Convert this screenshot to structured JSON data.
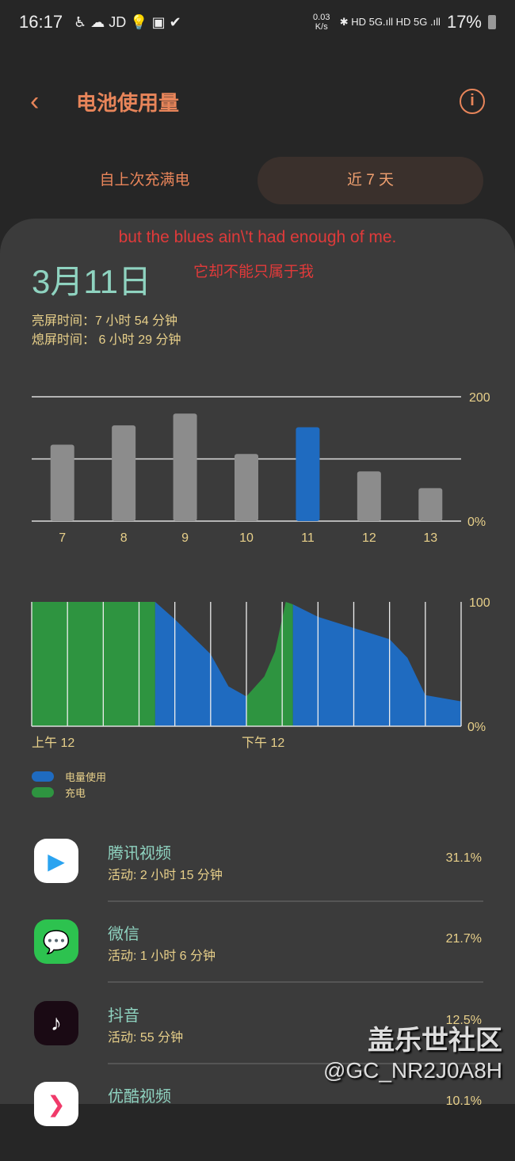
{
  "status": {
    "time": "16:17",
    "icons": "♿ ☁ JD 💡 ▣ ✔",
    "speed": "0.03 K/s",
    "net": "✱ HD 5G.ıll HD 5G .ıll",
    "battery": "17%"
  },
  "header": {
    "back": "‹",
    "title": "电池使用量",
    "info": "i"
  },
  "tabs": [
    {
      "label": "自上次充满电"
    },
    {
      "label": "近 7 天"
    }
  ],
  "lyrics": {
    "line1": "but the blues ain\\'t had enough of me.",
    "line2": "它却不能只属于我"
  },
  "date": "3月11日",
  "screen_on": "亮屏时间：7 小时 54 分钟",
  "screen_off": "熄屏时间： 6 小时 29 分钟",
  "chart_data": [
    {
      "type": "bar",
      "categories": [
        "7",
        "8",
        "9",
        "10",
        "11",
        "12",
        "13"
      ],
      "values": [
        123,
        154,
        173,
        108,
        151,
        80,
        53
      ],
      "highlight": "11",
      "ylim": [
        0,
        200
      ],
      "ytick_labels": [
        "200",
        "0%"
      ],
      "colors": {
        "normal": "#8c8c8c",
        "selected": "#1f6bc0"
      }
    },
    {
      "type": "area",
      "ylim": [
        0,
        100
      ],
      "ytick_labels": [
        "100",
        "0%"
      ],
      "xtick_labels": [
        "上午 12",
        "下午 12"
      ],
      "segments": [
        {
          "state": "charging",
          "points": [
            [
              0,
              100
            ],
            [
              6.9,
              100
            ]
          ]
        },
        {
          "state": "usage",
          "points": [
            [
              6.9,
              100
            ],
            [
              8,
              86
            ],
            [
              9,
              72
            ],
            [
              10,
              58
            ],
            [
              11,
              32
            ],
            [
              12,
              24
            ]
          ]
        },
        {
          "state": "charging",
          "points": [
            [
              12,
              24
            ],
            [
              13,
              40
            ],
            [
              13.6,
              60
            ],
            [
              14.2,
              100
            ],
            [
              14.6,
              98
            ]
          ]
        },
        {
          "state": "usage",
          "points": [
            [
              14.6,
              98
            ],
            [
              16,
              88
            ],
            [
              18,
              79
            ],
            [
              20,
              70
            ],
            [
              21,
              55
            ],
            [
              22,
              25
            ],
            [
              24,
              20
            ]
          ]
        }
      ],
      "legend": [
        {
          "label": "电量使用",
          "color": "#1f6bc0"
        },
        {
          "label": "充电",
          "color": "#2e9440"
        }
      ]
    }
  ],
  "apps": [
    {
      "name": "腾讯视频",
      "activity": "活动: 2 小时 15 分钟",
      "percent": "31.1%"
    },
    {
      "name": "微信",
      "activity": "活动: 1 小时 6 分钟",
      "percent": "21.7%"
    },
    {
      "name": "抖音",
      "activity": "活动: 55 分钟",
      "percent": "12.5%"
    },
    {
      "name": "优酷视频",
      "activity": "",
      "percent": "10.1%"
    }
  ],
  "watermark": {
    "line1": "盖乐世社区",
    "line2": "@GC_NR2J0A8H"
  }
}
